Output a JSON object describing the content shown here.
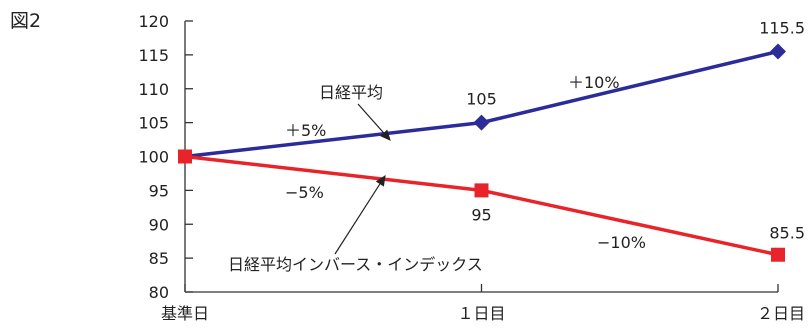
{
  "figure_label": "図2",
  "chart_data": {
    "type": "line",
    "categories": [
      "基準日",
      "１日目",
      "２日目"
    ],
    "ylim": [
      80,
      120
    ],
    "yticks": [
      80,
      85,
      90,
      95,
      100,
      105,
      110,
      115,
      120
    ],
    "grid": false,
    "series": [
      {
        "name": "日経平均",
        "values": [
          100,
          105,
          115.5
        ],
        "color": "#2b2b9a",
        "marker": "diamond",
        "data_labels": [
          "",
          "105",
          "115.5"
        ]
      },
      {
        "name": "日経平均インバース・インデックス",
        "values": [
          100,
          95,
          85.5
        ],
        "color": "#e8242a",
        "marker": "square",
        "data_labels": [
          "",
          "95",
          "85.5"
        ]
      }
    ],
    "annotations": {
      "up_day1": "＋5%",
      "up_day2": "＋10%",
      "down_day1": "−5%",
      "down_day2": "−10%"
    }
  }
}
